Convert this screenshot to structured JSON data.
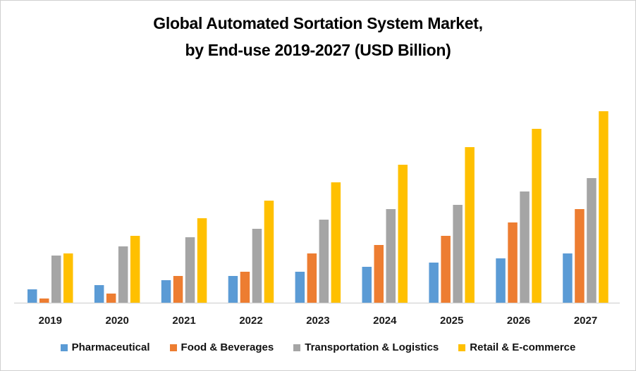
{
  "chart_data": {
    "type": "bar",
    "title": "Global Automated Sortation System Market,",
    "subtitle": "by End-use 2019-2027 (USD Billion)",
    "xlabel": "",
    "ylabel": "",
    "y_axis_visible": false,
    "grid": false,
    "legend_position": "bottom",
    "categories": [
      "2019",
      "2020",
      "2021",
      "2022",
      "2023",
      "2024",
      "2025",
      "2026",
      "2027"
    ],
    "value_units": "relative (no y-axis shown)",
    "ylim": [
      0,
      290
    ],
    "series": [
      {
        "name": "Pharmaceutical",
        "color": "#5B9BD5",
        "values": [
          19,
          25,
          32,
          38,
          44,
          51,
          57,
          63,
          70
        ]
      },
      {
        "name": "Food & Beverages",
        "color": "#ED7D31",
        "values": [
          6,
          13,
          38,
          44,
          70,
          82,
          95,
          114,
          133
        ]
      },
      {
        "name": "Transportation & Logistics",
        "color": "#A5A5A5",
        "values": [
          67,
          80,
          93,
          105,
          118,
          133,
          139,
          158,
          177
        ]
      },
      {
        "name": "Retail & E-commerce",
        "color": "#FFC000",
        "values": [
          70,
          95,
          120,
          145,
          171,
          196,
          221,
          247,
          272
        ]
      }
    ]
  }
}
